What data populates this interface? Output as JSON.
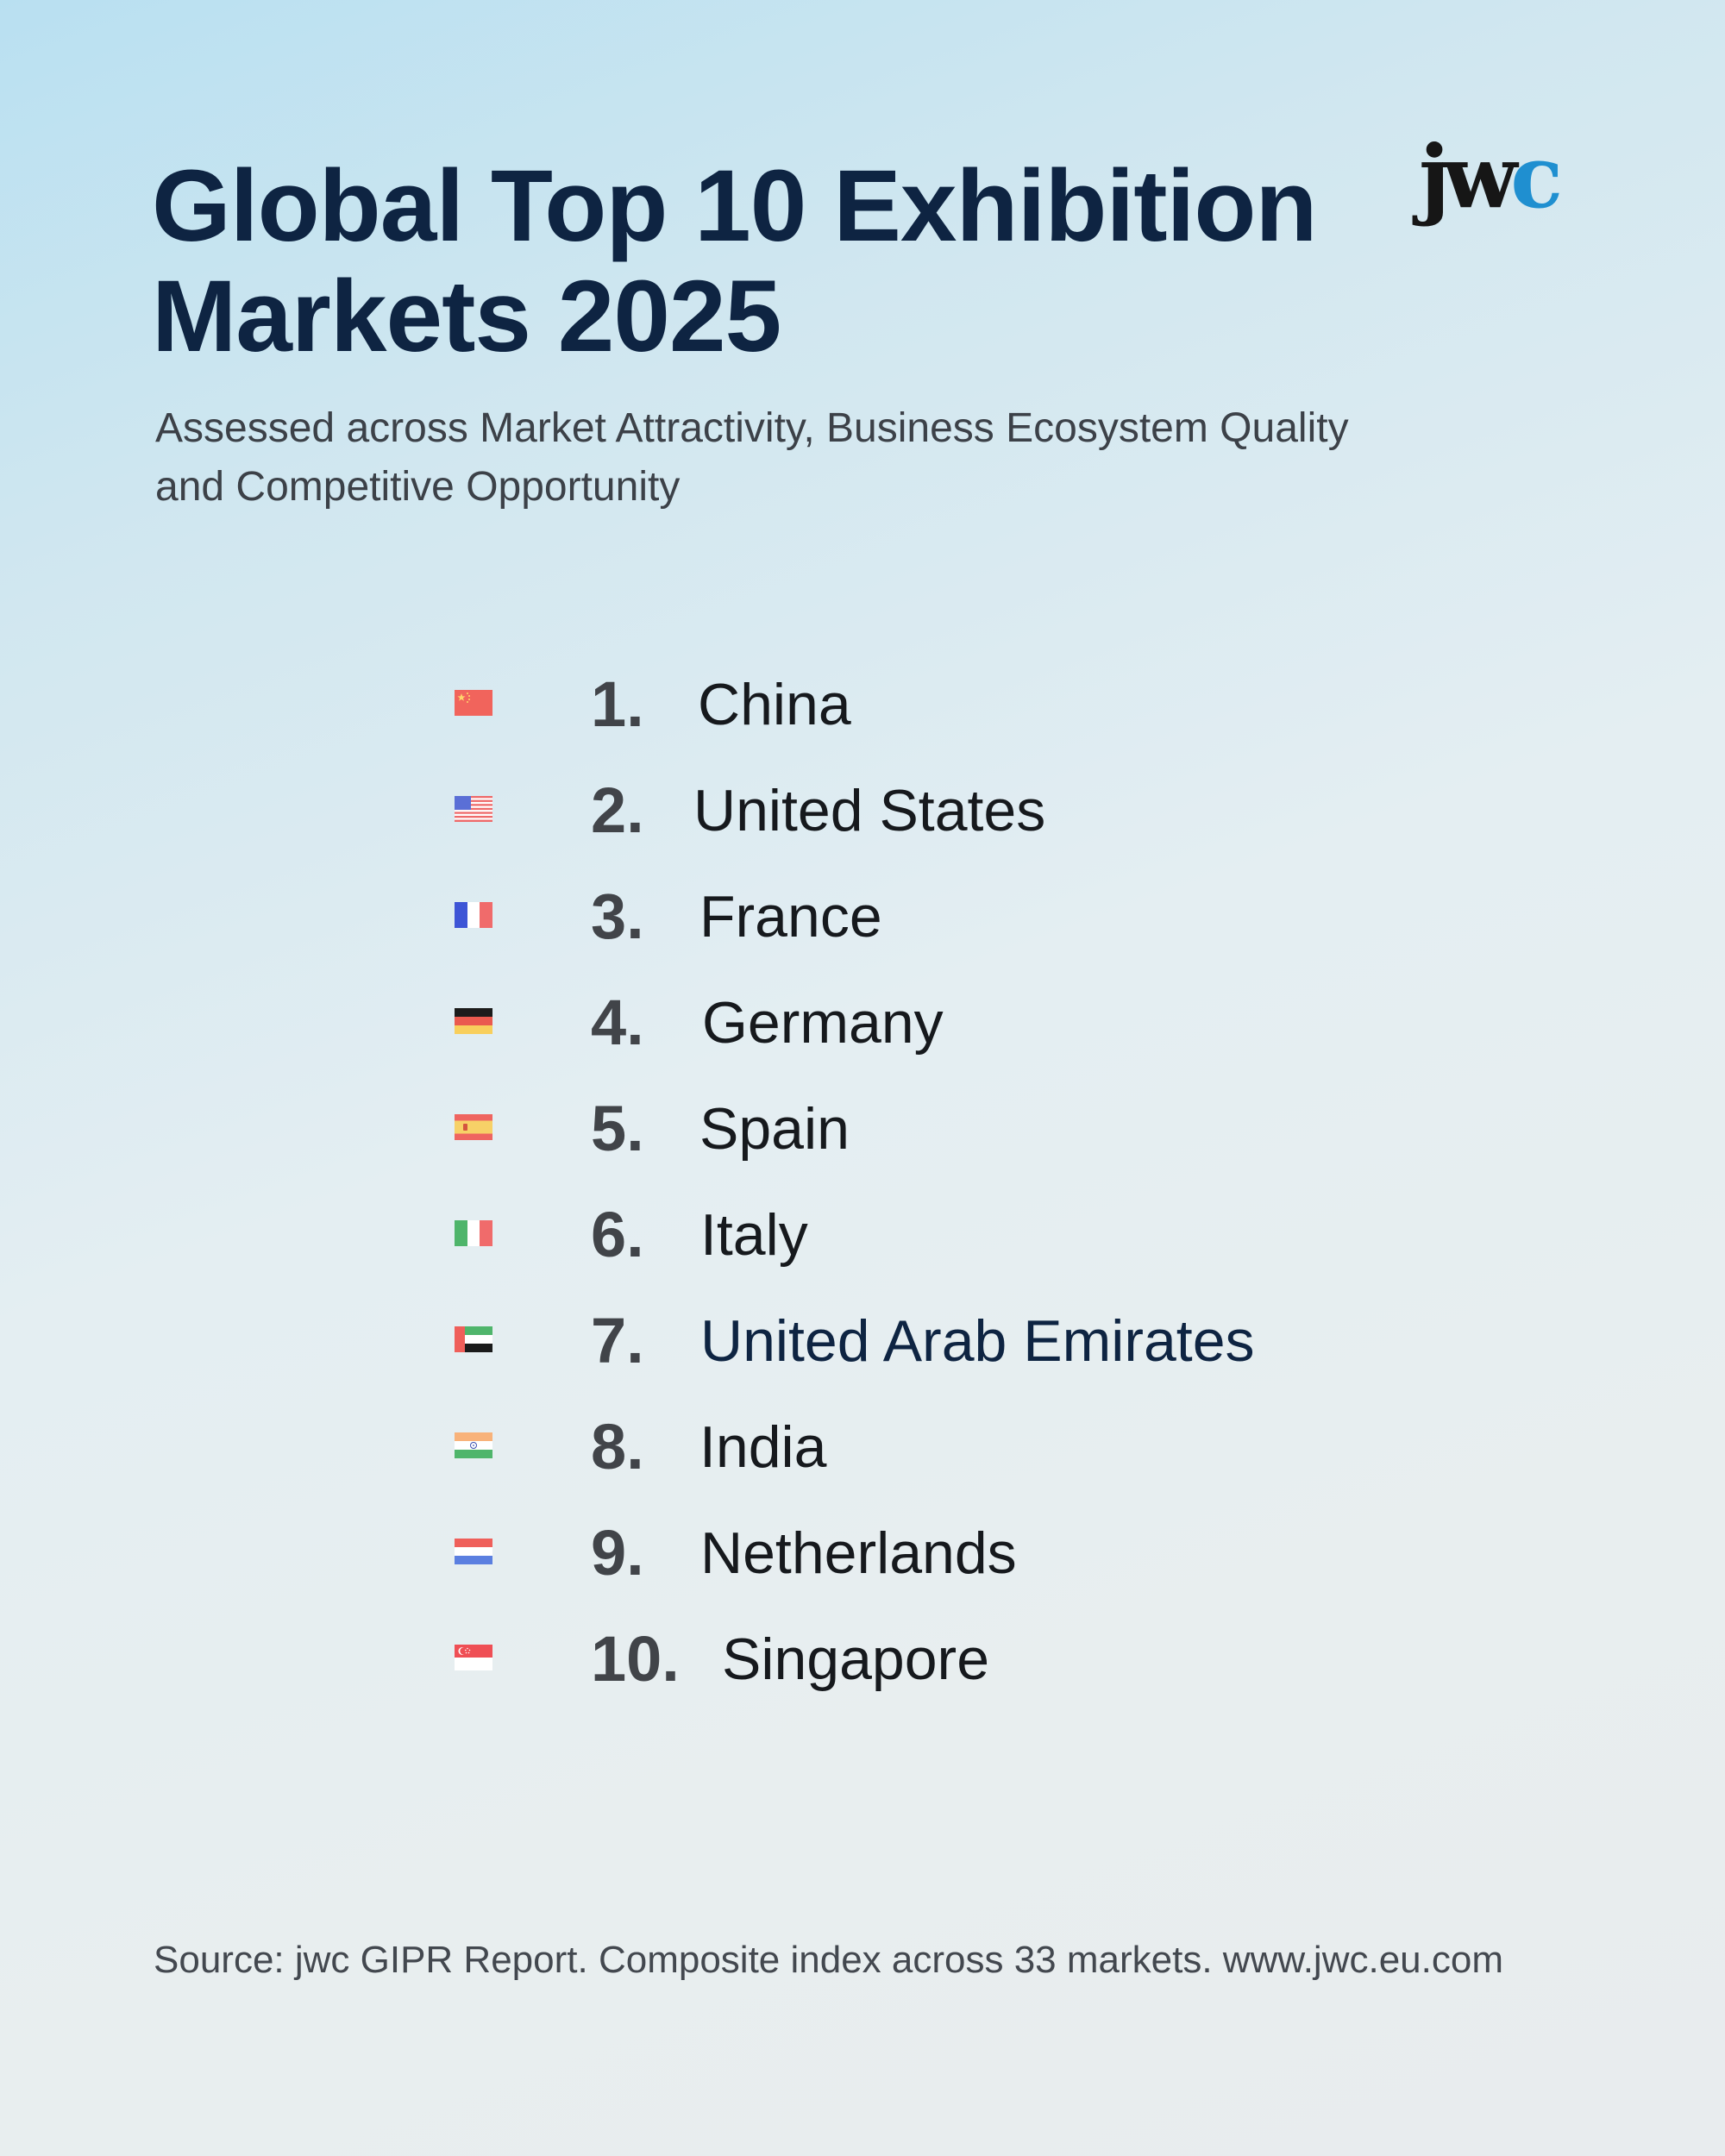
{
  "header": {
    "title_line1": "Global Top 10 Exhibition",
    "title_line2": "Markets 2025",
    "subtitle_line1": "Assessed across Market Attractivity, Business Ecosystem Quality",
    "subtitle_line2": "and Competitive Opportunity",
    "logo": {
      "part1": "jw",
      "part2": "c",
      "accent_color": "#1f8fd0",
      "text_color": "#161616"
    }
  },
  "ranking": [
    {
      "rank": "1.",
      "country": "China",
      "flag_icon": "china-flag-icon"
    },
    {
      "rank": "2.",
      "country": "United States",
      "flag_icon": "usa-flag-icon"
    },
    {
      "rank": "3.",
      "country": "France",
      "flag_icon": "france-flag-icon"
    },
    {
      "rank": "4.",
      "country": "Germany",
      "flag_icon": "germany-flag-icon"
    },
    {
      "rank": "5.",
      "country": "Spain",
      "flag_icon": "spain-flag-icon"
    },
    {
      "rank": "6.",
      "country": "Italy",
      "flag_icon": "italy-flag-icon"
    },
    {
      "rank": "7.",
      "country": "United Arab Emirates",
      "flag_icon": "uae-flag-icon"
    },
    {
      "rank": "8.",
      "country": "India",
      "flag_icon": "india-flag-icon"
    },
    {
      "rank": "9.",
      "country": "Netherlands",
      "flag_icon": "netherlands-flag-icon"
    },
    {
      "rank": "10.",
      "country": "Singapore",
      "flag_icon": "singapore-flag-icon"
    }
  ],
  "footer": {
    "source": "Source: jwc GIPR Report. Composite index across 33 markets. www.jwc.eu.com"
  },
  "colors": {
    "title": "#0e2442",
    "rank": "#414449",
    "country": "#16191d",
    "background_top": "#b9e0f1",
    "background_bottom": "#e8ecee"
  }
}
